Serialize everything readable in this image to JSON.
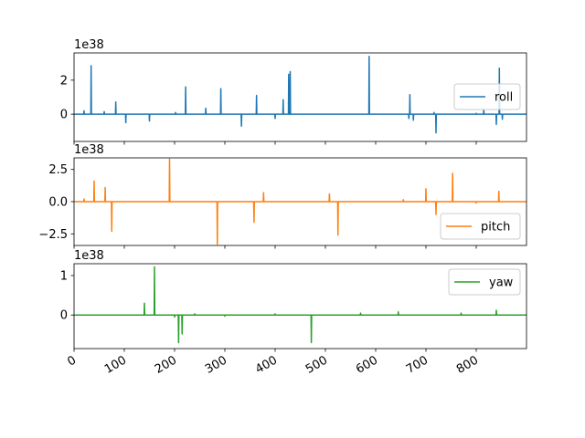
{
  "chart_data": {
    "type": "line",
    "x_range": [
      0,
      900
    ],
    "x_ticks": [
      0,
      100,
      200,
      300,
      400,
      500,
      600,
      700,
      800
    ],
    "x_tick_labels": [
      "0",
      "100",
      "200",
      "300",
      "400",
      "500",
      "600",
      "700",
      "800"
    ],
    "grid": false,
    "panels": [
      {
        "series": [
          {
            "name": "roll",
            "color": "#1f77b4"
          }
        ],
        "offset_label": "1e38",
        "ylim": [
          -1.6,
          3.6
        ],
        "y_ticks": [
          0,
          2
        ],
        "y_tick_labels": [
          "0",
          "2"
        ],
        "legend_position": "right",
        "spikes": [
          [
            20,
            0.2
          ],
          [
            34,
            2.85
          ],
          [
            60,
            0.15
          ],
          [
            83,
            0.72
          ],
          [
            103,
            -0.5
          ],
          [
            150,
            -0.4
          ],
          [
            202,
            0.1
          ],
          [
            222,
            1.6
          ],
          [
            262,
            0.35
          ],
          [
            292,
            1.5
          ],
          [
            333,
            -0.7
          ],
          [
            363,
            1.1
          ],
          [
            400,
            -0.25
          ],
          [
            416,
            0.85
          ],
          [
            427,
            2.35
          ],
          [
            430,
            2.5
          ],
          [
            587,
            3.4
          ],
          [
            666,
            -0.25
          ],
          [
            668,
            1.15
          ],
          [
            675,
            -0.35
          ],
          [
            716,
            0.1
          ],
          [
            720,
            -1.1
          ],
          [
            800,
            0.05
          ],
          [
            815,
            0.25
          ],
          [
            840,
            -0.6
          ],
          [
            846,
            2.7
          ],
          [
            852,
            -0.3
          ]
        ]
      },
      {
        "series": [
          {
            "name": "pitch",
            "color": "#ff7f0e"
          }
        ],
        "offset_label": "1e38",
        "ylim": [
          -3.4,
          3.4
        ],
        "y_ticks": [
          -2.5,
          0.0,
          2.5
        ],
        "y_tick_labels": [
          "−2.5",
          "0.0",
          "2.5"
        ],
        "legend_position": "lower right",
        "spikes": [
          [
            20,
            0.2
          ],
          [
            40,
            1.6
          ],
          [
            62,
            1.1
          ],
          [
            75,
            -2.3
          ],
          [
            190,
            3.3
          ],
          [
            285,
            -3.3
          ],
          [
            358,
            -1.6
          ],
          [
            377,
            0.7
          ],
          [
            508,
            0.6
          ],
          [
            525,
            -2.6
          ],
          [
            655,
            0.15
          ],
          [
            700,
            1.0
          ],
          [
            720,
            -1.0
          ],
          [
            753,
            2.2
          ],
          [
            800,
            -0.1
          ],
          [
            845,
            0.8
          ]
        ]
      },
      {
        "series": [
          {
            "name": "yaw",
            "color": "#2ca02c"
          }
        ],
        "offset_label": "1e38",
        "ylim": [
          -0.85,
          1.3
        ],
        "y_ticks": [
          0,
          1
        ],
        "y_tick_labels": [
          "0",
          "1"
        ],
        "legend_position": "upper right",
        "spikes": [
          [
            140,
            0.3
          ],
          [
            160,
            1.22
          ],
          [
            200,
            -0.05
          ],
          [
            208,
            -0.7
          ],
          [
            215,
            -0.48
          ],
          [
            240,
            0.03
          ],
          [
            300,
            -0.03
          ],
          [
            400,
            0.03
          ],
          [
            472,
            -0.7
          ],
          [
            570,
            0.05
          ],
          [
            645,
            0.08
          ],
          [
            770,
            0.05
          ],
          [
            840,
            0.12
          ]
        ]
      }
    ]
  }
}
